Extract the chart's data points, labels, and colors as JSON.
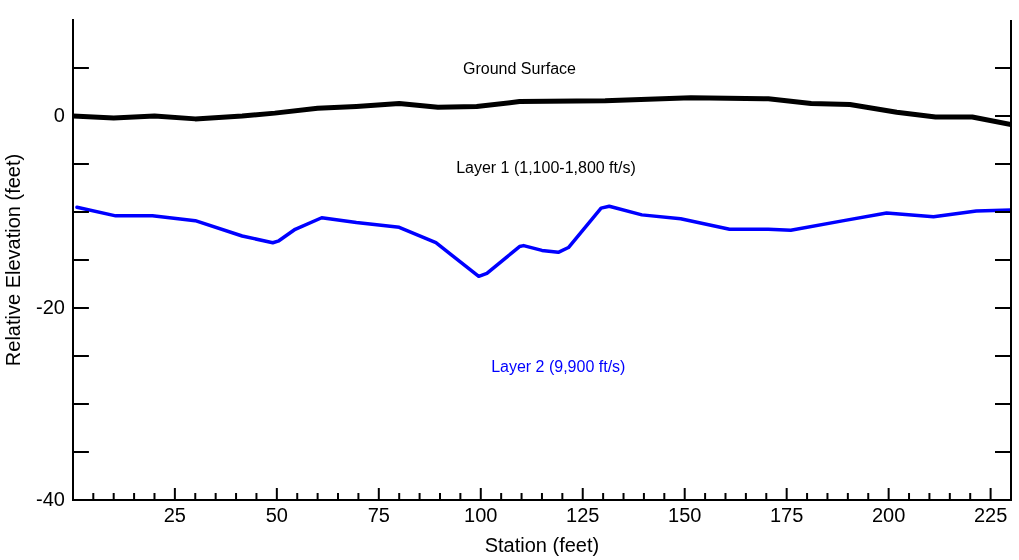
{
  "chart_data": {
    "type": "line",
    "xlabel": "Station (feet)",
    "ylabel": "Relative Elevation (feet)",
    "annotations": [
      "Layer 1 (1,100-1,800 ft/s)"
    ],
    "xlim": [
      0,
      230
    ],
    "xticks": [
      {
        "value": 5,
        "label": null
      },
      {
        "value": 10,
        "label": null
      },
      {
        "value": 15,
        "label": null
      },
      {
        "value": 20,
        "label": null
      },
      25,
      {
        "value": 30,
        "label": null
      },
      {
        "value": 35,
        "label": null
      },
      {
        "value": 40,
        "label": null
      },
      {
        "value": 45,
        "label": null
      },
      50,
      {
        "value": 55,
        "label": null
      },
      {
        "value": 60,
        "label": null
      },
      {
        "value": 65,
        "label": null
      },
      {
        "value": 70,
        "label": null
      },
      75,
      {
        "value": 80,
        "label": null
      },
      {
        "value": 85,
        "label": null
      },
      {
        "value": 90,
        "label": null
      },
      {
        "value": 95,
        "label": null
      },
      100,
      {
        "value": 105,
        "label": null
      },
      {
        "value": 110,
        "label": null
      },
      {
        "value": 115,
        "label": null
      },
      {
        "value": 120,
        "label": null
      },
      125,
      {
        "value": 130,
        "label": null
      },
      {
        "value": 135,
        "label": null
      },
      {
        "value": 140,
        "label": null
      },
      {
        "value": 145,
        "label": null
      },
      150,
      {
        "value": 155,
        "label": null
      },
      {
        "value": 160,
        "label": null
      },
      {
        "value": 165,
        "label": null
      },
      {
        "value": 170,
        "label": null
      },
      175,
      {
        "value": 180,
        "label": null
      },
      {
        "value": 185,
        "label": null
      },
      {
        "value": 190,
        "label": null
      },
      {
        "value": 195,
        "label": null
      },
      200,
      {
        "value": 205,
        "label": null
      },
      {
        "value": 210,
        "label": null
      },
      {
        "value": 215,
        "label": null
      },
      {
        "value": 220,
        "label": null
      },
      225
    ],
    "ylim": [
      -40,
      10
    ],
    "yticks": [
      -40,
      {
        "value": -35,
        "label": null
      },
      {
        "value": -30,
        "label": null
      },
      {
        "value": -25,
        "label": null
      },
      -20,
      {
        "value": -15,
        "label": null
      },
      {
        "value": -10,
        "label": null
      },
      {
        "value": -5,
        "label": null
      },
      0,
      {
        "value": 5,
        "label": null
      }
    ],
    "legend": false,
    "marker": "none",
    "line_style": "solid",
    "series": [
      {
        "name": "Ground Surface",
        "color": "#000000",
        "x": [
          0,
          10,
          20,
          30,
          41.5,
          49.5,
          60,
          69.5,
          80,
          89.5,
          99,
          109.5,
          130.5,
          151.5,
          170.5,
          181,
          190.5,
          202,
          211.5,
          220.5,
          230
        ],
        "values": [
          0,
          -0.2,
          0,
          -0.3,
          0,
          0.3,
          0.8,
          1,
          1.3,
          0.9,
          1,
          1.5,
          1.6,
          1.9,
          1.8,
          1.3,
          1.2,
          0.4,
          -0.1,
          -0.1,
          -0.9
        ]
      },
      {
        "name": "Layer 2 (9,900 ft/s)",
        "color": "#0000ff",
        "x": [
          1,
          10.5,
          19.5,
          30,
          41.5,
          49,
          50.5,
          54.5,
          61,
          69.5,
          80,
          89,
          99.5,
          101.5,
          109.5,
          110.5,
          115,
          119,
          121.5,
          129.5,
          131.5,
          139.5,
          149,
          161,
          170.5,
          176,
          189,
          199.5,
          211,
          221.5,
          230
        ],
        "values": [
          -9.5,
          -10.4,
          -10.4,
          -10.9,
          -12.5,
          -13.2,
          -13,
          -11.8,
          -10.6,
          -11.1,
          -11.6,
          -13.2,
          -16.7,
          -16.4,
          -13.6,
          -13.5,
          -14,
          -14.2,
          -13.7,
          -9.6,
          -9.4,
          -10.3,
          -10.7,
          -11.8,
          -11.8,
          -11.9,
          -10.9,
          -10.1,
          -10.5,
          -9.9,
          -9.8
        ]
      }
    ]
  }
}
